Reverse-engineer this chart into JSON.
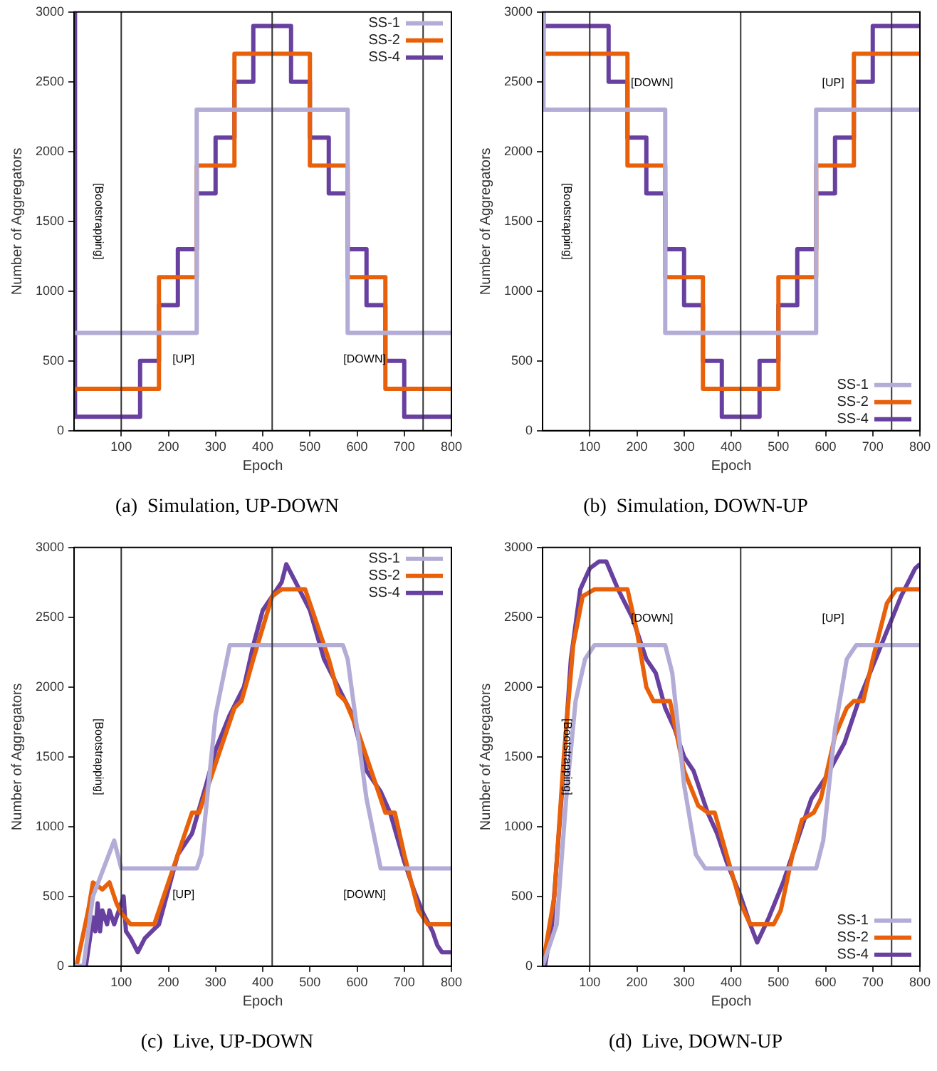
{
  "chart_data": [
    {
      "type": "step",
      "title": "(a)  Simulation, UP-DOWN",
      "xlabel": "Epoch",
      "ylabel": "Number of Aggregators",
      "xlim": [
        0,
        800
      ],
      "ylim": [
        0,
        3000
      ],
      "xticks": [
        100,
        200,
        300,
        400,
        500,
        600,
        700,
        800
      ],
      "yticks": [
        0,
        500,
        1000,
        1500,
        2000,
        2500,
        3000
      ],
      "grid": false,
      "legend": "top right",
      "marker": "none",
      "ref_lines": [
        {
          "axis": "x",
          "value": 100,
          "color": "#333333"
        },
        {
          "axis": "x",
          "value": 420,
          "color": "#333333"
        },
        {
          "axis": "x",
          "value": 740,
          "color": "#333333"
        }
      ],
      "annotations": [
        "[Bootstrapping]",
        "[UP]",
        "[DOWN]"
      ],
      "series": [
        {
          "name": "SS-1",
          "color": "#b3acd6",
          "x": [
            2,
            260,
            580,
            800
          ],
          "values": [
            700,
            2300,
            700,
            700
          ]
        },
        {
          "name": "SS-2",
          "color": "#e8600a",
          "x": [
            2,
            180,
            260,
            340,
            500,
            580,
            660,
            800
          ],
          "values": [
            300,
            1100,
            1900,
            2700,
            1900,
            1100,
            300,
            300
          ]
        },
        {
          "name": "SS-4",
          "color": "#6840a0",
          "x": [
            0,
            2,
            140,
            180,
            220,
            260,
            300,
            340,
            380,
            460,
            500,
            540,
            580,
            620,
            660,
            700,
            800
          ],
          "values": [
            3000,
            100,
            500,
            900,
            1300,
            1700,
            2100,
            2500,
            2900,
            2500,
            2100,
            1700,
            1300,
            900,
            500,
            100,
            100
          ]
        }
      ]
    },
    {
      "type": "step",
      "title": "(b)  Simulation, DOWN-UP",
      "xlabel": "Epoch",
      "ylabel": "Number of Aggregators",
      "xlim": [
        0,
        800
      ],
      "ylim": [
        0,
        3000
      ],
      "xticks": [
        100,
        200,
        300,
        400,
        500,
        600,
        700,
        800
      ],
      "yticks": [
        0,
        500,
        1000,
        1500,
        2000,
        2500,
        3000
      ],
      "grid": false,
      "legend": "bottom right",
      "marker": "none",
      "ref_lines": [
        {
          "axis": "x",
          "value": 100,
          "color": "#333333"
        },
        {
          "axis": "x",
          "value": 420,
          "color": "#333333"
        },
        {
          "axis": "x",
          "value": 740,
          "color": "#333333"
        }
      ],
      "annotations": [
        "[Bootstrapping]",
        "[DOWN]",
        "[UP]"
      ],
      "series": [
        {
          "name": "SS-1",
          "color": "#b3acd6",
          "x": [
            0,
            2,
            260,
            580,
            800
          ],
          "values": [
            3000,
            2300,
            700,
            2300,
            2300
          ]
        },
        {
          "name": "SS-2",
          "color": "#e8600a",
          "x": [
            0,
            2,
            180,
            260,
            340,
            500,
            580,
            660,
            800
          ],
          "values": [
            3000,
            2700,
            1900,
            1100,
            300,
            1100,
            1900,
            2700,
            2700
          ]
        },
        {
          "name": "SS-4",
          "color": "#6840a0",
          "x": [
            0,
            2,
            140,
            180,
            220,
            260,
            300,
            340,
            380,
            460,
            500,
            540,
            580,
            620,
            660,
            700,
            800
          ],
          "values": [
            3000,
            2900,
            2500,
            2100,
            1700,
            1300,
            900,
            500,
            100,
            500,
            900,
            1300,
            1700,
            2100,
            2500,
            2900,
            2900
          ]
        }
      ]
    },
    {
      "type": "line",
      "title": "(c)  Live, UP-DOWN",
      "xlabel": "Epoch",
      "ylabel": "Number of Aggregators",
      "xlim": [
        0,
        800
      ],
      "ylim": [
        0,
        3000
      ],
      "xticks": [
        100,
        200,
        300,
        400,
        500,
        600,
        700,
        800
      ],
      "yticks": [
        0,
        500,
        1000,
        1500,
        2000,
        2500,
        3000
      ],
      "grid": false,
      "legend": "top right",
      "marker": "none",
      "ref_lines": [
        {
          "axis": "x",
          "value": 100,
          "color": "#333333"
        },
        {
          "axis": "x",
          "value": 420,
          "color": "#333333"
        },
        {
          "axis": "x",
          "value": 740,
          "color": "#333333"
        }
      ],
      "annotations": [
        "[Bootstrapping]",
        "[UP]",
        "[DOWN]"
      ],
      "series": [
        {
          "name": "SS-1",
          "color": "#b3acd6",
          "x": [
            0,
            20,
            40,
            85,
            100,
            260,
            270,
            300,
            330,
            570,
            580,
            620,
            650,
            800
          ],
          "values": [
            0,
            0,
            500,
            900,
            700,
            700,
            800,
            1800,
            2300,
            2300,
            2200,
            1200,
            700,
            700
          ]
        },
        {
          "name": "SS-2",
          "color": "#e8600a",
          "x": [
            5,
            30,
            40,
            60,
            75,
            90,
            100,
            120,
            170,
            200,
            230,
            250,
            265,
            300,
            340,
            355,
            380,
            420,
            440,
            490,
            510,
            540,
            560,
            575,
            600,
            640,
            660,
            680,
            700,
            730,
            750,
            800
          ],
          "values": [
            0,
            400,
            600,
            550,
            600,
            450,
            380,
            300,
            300,
            600,
            900,
            1100,
            1100,
            1450,
            1850,
            1900,
            2200,
            2650,
            2700,
            2700,
            2500,
            2200,
            1950,
            1900,
            1700,
            1300,
            1100,
            1100,
            800,
            400,
            300,
            300
          ]
        },
        {
          "name": "SS-4",
          "color": "#6840a0",
          "x": [
            10,
            25,
            40,
            45,
            50,
            55,
            60,
            70,
            75,
            85,
            95,
            105,
            110,
            120,
            135,
            150,
            180,
            200,
            220,
            250,
            280,
            300,
            330,
            360,
            380,
            400,
            420,
            440,
            450,
            470,
            500,
            530,
            560,
            590,
            620,
            650,
            670,
            700,
            720,
            740,
            760,
            770,
            780,
            800
          ],
          "values": [
            0,
            0,
            350,
            250,
            450,
            250,
            400,
            300,
            400,
            300,
            400,
            500,
            250,
            200,
            100,
            200,
            300,
            550,
            800,
            950,
            1300,
            1550,
            1800,
            2000,
            2300,
            2550,
            2650,
            2750,
            2880,
            2750,
            2550,
            2200,
            2000,
            1800,
            1400,
            1250,
            1100,
            750,
            550,
            380,
            250,
            150,
            100,
            100
          ]
        }
      ]
    },
    {
      "type": "line",
      "title": "(d)  Live, DOWN-UP",
      "xlabel": "Epoch",
      "ylabel": "Number of Aggregators",
      "xlim": [
        0,
        800
      ],
      "ylim": [
        0,
        3000
      ],
      "xticks": [
        100,
        200,
        300,
        400,
        500,
        600,
        700,
        800
      ],
      "yticks": [
        0,
        500,
        1000,
        1500,
        2000,
        2500,
        3000
      ],
      "grid": false,
      "legend": "bottom right",
      "marker": "none",
      "ref_lines": [
        {
          "axis": "x",
          "value": 100,
          "color": "#333333"
        },
        {
          "axis": "x",
          "value": 420,
          "color": "#333333"
        },
        {
          "axis": "x",
          "value": 740,
          "color": "#333333"
        }
      ],
      "annotations": [
        "[Bootstrapping]",
        "[DOWN]",
        "[UP]"
      ],
      "series": [
        {
          "name": "SS-1",
          "color": "#b3acd6",
          "x": [
            0,
            30,
            50,
            70,
            90,
            110,
            260,
            275,
            300,
            325,
            345,
            580,
            595,
            620,
            645,
            665,
            800
          ],
          "values": [
            0,
            300,
            1200,
            1900,
            2200,
            2300,
            2300,
            2100,
            1300,
            800,
            700,
            700,
            900,
            1700,
            2200,
            2300,
            2300
          ]
        },
        {
          "name": "SS-2",
          "color": "#e8600a",
          "x": [
            0,
            25,
            45,
            65,
            85,
            110,
            180,
            200,
            220,
            235,
            270,
            300,
            330,
            350,
            365,
            390,
            420,
            440,
            490,
            505,
            530,
            550,
            575,
            590,
            620,
            645,
            660,
            680,
            700,
            730,
            750,
            800
          ],
          "values": [
            0,
            500,
            1500,
            2300,
            2650,
            2700,
            2700,
            2400,
            2000,
            1900,
            1900,
            1400,
            1150,
            1100,
            1100,
            800,
            450,
            300,
            300,
            400,
            800,
            1050,
            1100,
            1200,
            1650,
            1850,
            1900,
            1900,
            2200,
            2600,
            2700,
            2700
          ]
        },
        {
          "name": "SS-4",
          "color": "#6840a0",
          "x": [
            5,
            20,
            40,
            60,
            80,
            100,
            120,
            135,
            160,
            190,
            220,
            240,
            260,
            280,
            300,
            320,
            350,
            370,
            390,
            420,
            440,
            455,
            480,
            510,
            540,
            570,
            600,
            640,
            670,
            700,
            730,
            760,
            790,
            800
          ],
          "values": [
            0,
            300,
            1200,
            2200,
            2700,
            2850,
            2900,
            2900,
            2700,
            2500,
            2200,
            2100,
            1850,
            1700,
            1500,
            1400,
            1100,
            950,
            750,
            500,
            300,
            170,
            350,
            600,
            900,
            1200,
            1350,
            1600,
            1900,
            2150,
            2400,
            2650,
            2850,
            2880
          ]
        }
      ]
    }
  ]
}
